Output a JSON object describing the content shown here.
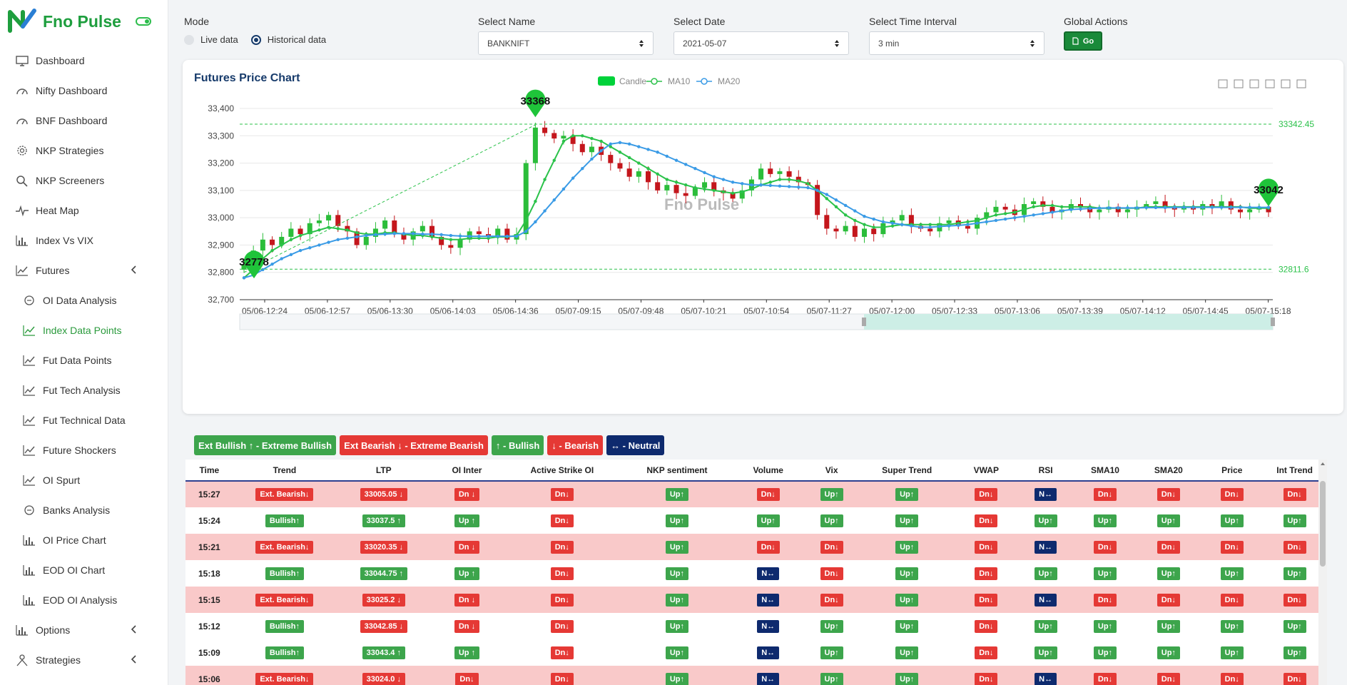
{
  "brand": {
    "name": "Fno Pulse"
  },
  "sidebar": {
    "items": [
      {
        "label": "Dashboard",
        "icon": "monitor-icon"
      },
      {
        "label": "Nifty Dashboard",
        "icon": "speedometer-icon"
      },
      {
        "label": "BNF Dashboard",
        "icon": "speedometer-icon"
      },
      {
        "label": "NKP Strategies",
        "icon": "gear-icon"
      },
      {
        "label": "NKP Screeners",
        "icon": "search-icon"
      },
      {
        "label": "Heat Map",
        "icon": "pulse-icon"
      },
      {
        "label": "Index Vs VIX",
        "icon": "bar-chart-icon"
      },
      {
        "label": "Futures",
        "icon": "line-chart-icon"
      },
      {
        "label": "OI Data Analysis",
        "icon": "circle-icon"
      },
      {
        "label": "Index Data Points",
        "icon": "line-chart-icon"
      },
      {
        "label": "Fut Data Points",
        "icon": "line-chart-icon"
      },
      {
        "label": "Fut Tech Analysis",
        "icon": "line-chart-icon"
      },
      {
        "label": "Fut Technical Data",
        "icon": "line-chart-icon"
      },
      {
        "label": "Future Shockers",
        "icon": "line-chart-icon"
      },
      {
        "label": "OI Spurt",
        "icon": "line-chart-icon"
      },
      {
        "label": "Banks Analysis",
        "icon": "circle-icon"
      },
      {
        "label": "OI Price Chart",
        "icon": "bar-chart-icon"
      },
      {
        "label": "EOD OI Chart",
        "icon": "bar-chart-icon"
      },
      {
        "label": "EOD OI Analysis",
        "icon": "bar-chart-icon"
      },
      {
        "label": "Options",
        "icon": "bar-chart-icon"
      },
      {
        "label": "Strategies",
        "icon": "person-icon"
      }
    ]
  },
  "controls": {
    "mode_label": "Mode",
    "mode_live": "Live data",
    "mode_hist": "Historical data",
    "name_label": "Select Name",
    "name_value": "BANKNIFT",
    "date_label": "Select Date",
    "date_value": "2021-05-07",
    "interval_label": "Select Time Interval",
    "interval_value": "3 min",
    "actions_label": "Global Actions",
    "go_label": "Go"
  },
  "chart_data": {
    "type": "candlestick",
    "title": "Futures Price Chart",
    "watermark": "Fno Pulse",
    "legend": [
      "Candle",
      "MA10",
      "MA20"
    ],
    "ylim": [
      32700,
      33400
    ],
    "yticks": [
      32700,
      32800,
      32900,
      33000,
      33100,
      33200,
      33300,
      33400
    ],
    "ytick_labels": [
      "32,700",
      "32,800",
      "32,900",
      "33,000",
      "33,100",
      "33,200",
      "33,300",
      "33,400"
    ],
    "xtick_labels": [
      "05/06-12:24",
      "05/06-12:57",
      "05/06-13:30",
      "05/06-14:03",
      "05/06-14:36",
      "05/07-09:15",
      "05/07-09:48",
      "05/07-10:21",
      "05/07-10:54",
      "05/07-11:27",
      "05/07-12:00",
      "05/07-12:33",
      "05/07-13:06",
      "05/07-13:39",
      "05/07-14:12",
      "05/07-14:45",
      "05/07-15:18"
    ],
    "markLines": [
      {
        "value": 33342.45,
        "label": "33342.45"
      },
      {
        "value": 32811.6,
        "label": "32811.6"
      }
    ],
    "markPoints": [
      {
        "label": "33368",
        "value": 33368,
        "at": "05/07-09:30"
      },
      {
        "label": "32778",
        "value": 32778,
        "at": "05/06-12:00"
      },
      {
        "label": "33042",
        "value": 33042,
        "at": "05/07-14:50"
      }
    ],
    "close": [
      32830,
      32880,
      32920,
      32900,
      32930,
      32960,
      32940,
      32980,
      32990,
      33010,
      32970,
      32950,
      32900,
      32930,
      32960,
      32990,
      32940,
      32920,
      32950,
      32970,
      32930,
      32900,
      32890,
      32920,
      32950,
      32940,
      32930,
      32960,
      32920,
      32940,
      33200,
      33330,
      33310,
      33290,
      33300,
      33270,
      33240,
      33260,
      33230,
      33200,
      33180,
      33150,
      33170,
      33130,
      33100,
      33120,
      33090,
      33080,
      33110,
      33130,
      33100,
      33090,
      33070,
      33100,
      33140,
      33180,
      33160,
      33170,
      33150,
      33130,
      33120,
      33010,
      32960,
      32950,
      32970,
      32930,
      32960,
      32940,
      32980,
      32990,
      33010,
      32970,
      32960,
      32950,
      32980,
      32990,
      32970,
      32960,
      33000,
      33020,
      33040,
      33030,
      33010,
      33050,
      33060,
      33040,
      33020,
      33030,
      33050,
      33040,
      33020,
      33030,
      33040,
      33020,
      33030,
      33040,
      33050,
      33060,
      33040,
      33030,
      33040,
      33030,
      33050,
      33040,
      33060,
      33030,
      33020,
      33030,
      33040,
      33020
    ],
    "ma10": [
      32780,
      32810,
      32850,
      32880,
      32900,
      32920,
      32935,
      32945,
      32955,
      32965,
      32960,
      32955,
      32945,
      32940,
      32940,
      32945,
      32945,
      32940,
      32935,
      32935,
      32930,
      32925,
      32920,
      32920,
      32925,
      32925,
      32925,
      32930,
      32930,
      32935,
      32990,
      33060,
      33140,
      33210,
      33280,
      33300,
      33300,
      33290,
      33280,
      33260,
      33240,
      33220,
      33200,
      33180,
      33160,
      33140,
      33130,
      33120,
      33110,
      33105,
      33100,
      33095,
      33090,
      33095,
      33105,
      33120,
      33130,
      33140,
      33140,
      33135,
      33125,
      33100,
      33070,
      33040,
      33010,
      32990,
      32975,
      32965,
      32965,
      32970,
      32975,
      32975,
      32975,
      32975,
      32975,
      32975,
      32980,
      32985,
      32990,
      33000,
      33010,
      33015,
      33020,
      33030,
      33040,
      33045,
      33045,
      33040,
      33040,
      33040,
      33040,
      33035,
      33035,
      33035,
      33035,
      33035,
      33040,
      33040,
      33040,
      33040,
      33040,
      33040,
      33040,
      33040,
      33040,
      33040,
      33040,
      33035,
      33035,
      33035
    ],
    "ma20": [
      32780,
      32790,
      32810,
      32830,
      32850,
      32865,
      32880,
      32890,
      32900,
      32910,
      32920,
      32925,
      32930,
      32935,
      32938,
      32940,
      32942,
      32942,
      32942,
      32940,
      32940,
      32938,
      32935,
      32933,
      32932,
      32932,
      32932,
      32932,
      32932,
      32932,
      32950,
      32985,
      33025,
      33065,
      33105,
      33145,
      33180,
      33215,
      33245,
      33270,
      33275,
      33270,
      33260,
      33250,
      33240,
      33225,
      33210,
      33195,
      33180,
      33165,
      33150,
      33140,
      33130,
      33125,
      33120,
      33120,
      33118,
      33116,
      33114,
      33112,
      33110,
      33100,
      33085,
      33065,
      33045,
      33025,
      33005,
      32995,
      32985,
      32980,
      32975,
      32970,
      32965,
      32965,
      32968,
      32970,
      32972,
      32975,
      32980,
      32985,
      32990,
      32995,
      33000,
      33005,
      33010,
      33015,
      33020,
      33025,
      33030,
      33032,
      33034,
      33035,
      33036,
      33036,
      33036,
      33036,
      33037,
      33037,
      33037,
      33038,
      33038,
      33038,
      33038,
      33038,
      33038,
      33038,
      33038,
      33038,
      33038,
      33038
    ]
  },
  "chips": [
    {
      "label": "Ext Bullish ↑ - Extreme Bullish",
      "kind": "g"
    },
    {
      "label": "Ext Bearish ↓ - Extreme Bearish",
      "kind": "r"
    },
    {
      "label": "↑ - Bullish",
      "kind": "g"
    },
    {
      "label": "↓ - Bearish",
      "kind": "r"
    },
    {
      "label": "↔ - Neutral",
      "kind": "n"
    }
  ],
  "table": {
    "headers": [
      "Time",
      "Trend",
      "LTP",
      "OI Inter",
      "Active Strike OI",
      "NKP sentiment",
      "Volume",
      "Vix",
      "Super Trend",
      "VWAP",
      "RSI",
      "SMA10",
      "SMA20",
      "Price",
      "Int Trend"
    ],
    "rows": [
      {
        "style": "bear",
        "cells": [
          [
            "15:27",
            "t"
          ],
          [
            "Ext. Bearish↓",
            "r"
          ],
          [
            "33005.05 ↓",
            "r"
          ],
          [
            "Dn ↓",
            "r"
          ],
          [
            "Dn↓",
            "r"
          ],
          [
            "Up↑",
            "g"
          ],
          [
            "Dn↓",
            "r"
          ],
          [
            "Up↑",
            "g"
          ],
          [
            "Up↑",
            "g"
          ],
          [
            "Dn↓",
            "r"
          ],
          [
            "N↔",
            "n"
          ],
          [
            "Dn↓",
            "r"
          ],
          [
            "Dn↓",
            "r"
          ],
          [
            "Dn↓",
            "r"
          ],
          [
            "Dn↓",
            "r"
          ]
        ]
      },
      {
        "style": "bull",
        "cells": [
          [
            "15:24",
            "t"
          ],
          [
            "Bullish↑",
            "g"
          ],
          [
            "33037.5 ↑",
            "g"
          ],
          [
            "Up ↑",
            "g"
          ],
          [
            "Dn↓",
            "r"
          ],
          [
            "Up↑",
            "g"
          ],
          [
            "Up↑",
            "g"
          ],
          [
            "Up↑",
            "g"
          ],
          [
            "Up↑",
            "g"
          ],
          [
            "Dn↓",
            "r"
          ],
          [
            "Up↑",
            "g"
          ],
          [
            "Up↑",
            "g"
          ],
          [
            "Up↑",
            "g"
          ],
          [
            "Up↑",
            "g"
          ],
          [
            "Up↑",
            "g"
          ]
        ]
      },
      {
        "style": "bear",
        "cells": [
          [
            "15:21",
            "t"
          ],
          [
            "Ext. Bearish↓",
            "r"
          ],
          [
            "33020.35 ↓",
            "r"
          ],
          [
            "Dn ↓",
            "r"
          ],
          [
            "Dn↓",
            "r"
          ],
          [
            "Up↑",
            "g"
          ],
          [
            "Dn↓",
            "r"
          ],
          [
            "Dn↓",
            "r"
          ],
          [
            "Up↑",
            "g"
          ],
          [
            "Dn↓",
            "r"
          ],
          [
            "N↔",
            "n"
          ],
          [
            "Dn↓",
            "r"
          ],
          [
            "Dn↓",
            "r"
          ],
          [
            "Dn↓",
            "r"
          ],
          [
            "Dn↓",
            "r"
          ]
        ]
      },
      {
        "style": "bull",
        "cells": [
          [
            "15:18",
            "t"
          ],
          [
            "Bullish↑",
            "g"
          ],
          [
            "33044.75 ↑",
            "g"
          ],
          [
            "Up ↑",
            "g"
          ],
          [
            "Dn↓",
            "r"
          ],
          [
            "Up↑",
            "g"
          ],
          [
            "N↔",
            "n"
          ],
          [
            "Dn↓",
            "r"
          ],
          [
            "Up↑",
            "g"
          ],
          [
            "Dn↓",
            "r"
          ],
          [
            "Up↑",
            "g"
          ],
          [
            "Up↑",
            "g"
          ],
          [
            "Up↑",
            "g"
          ],
          [
            "Up↑",
            "g"
          ],
          [
            "Up↑",
            "g"
          ]
        ]
      },
      {
        "style": "bear",
        "cells": [
          [
            "15:15",
            "t"
          ],
          [
            "Ext. Bearish↓",
            "r"
          ],
          [
            "33025.2 ↓",
            "r"
          ],
          [
            "Dn ↓",
            "r"
          ],
          [
            "Dn↓",
            "r"
          ],
          [
            "Up↑",
            "g"
          ],
          [
            "N↔",
            "n"
          ],
          [
            "Dn↓",
            "r"
          ],
          [
            "Up↑",
            "g"
          ],
          [
            "Dn↓",
            "r"
          ],
          [
            "N↔",
            "n"
          ],
          [
            "Dn↓",
            "r"
          ],
          [
            "Dn↓",
            "r"
          ],
          [
            "Dn↓",
            "r"
          ],
          [
            "Dn↓",
            "r"
          ]
        ]
      },
      {
        "style": "bull",
        "cells": [
          [
            "15:12",
            "t"
          ],
          [
            "Bullish↑",
            "g"
          ],
          [
            "33042.85 ↓",
            "r"
          ],
          [
            "Dn ↓",
            "r"
          ],
          [
            "Dn↓",
            "r"
          ],
          [
            "Up↑",
            "g"
          ],
          [
            "N↔",
            "n"
          ],
          [
            "Up↑",
            "g"
          ],
          [
            "Up↑",
            "g"
          ],
          [
            "Dn↓",
            "r"
          ],
          [
            "Up↑",
            "g"
          ],
          [
            "Up↑",
            "g"
          ],
          [
            "Up↑",
            "g"
          ],
          [
            "Up↑",
            "g"
          ],
          [
            "Up↑",
            "g"
          ]
        ]
      },
      {
        "style": "bull",
        "cells": [
          [
            "15:09",
            "t"
          ],
          [
            "Bullish↑",
            "g"
          ],
          [
            "33043.4 ↑",
            "g"
          ],
          [
            "Up ↑",
            "g"
          ],
          [
            "Dn↓",
            "r"
          ],
          [
            "Up↑",
            "g"
          ],
          [
            "N↔",
            "n"
          ],
          [
            "Up↑",
            "g"
          ],
          [
            "Up↑",
            "g"
          ],
          [
            "Dn↓",
            "r"
          ],
          [
            "Up↑",
            "g"
          ],
          [
            "Up↑",
            "g"
          ],
          [
            "Up↑",
            "g"
          ],
          [
            "Up↑",
            "g"
          ],
          [
            "Up↑",
            "g"
          ]
        ]
      },
      {
        "style": "bear",
        "cells": [
          [
            "15:06",
            "t"
          ],
          [
            "Ext. Bearish↓",
            "r"
          ],
          [
            "33024.0 ↓",
            "r"
          ],
          [
            "Dn↓",
            "r"
          ],
          [
            "Dn↓",
            "r"
          ],
          [
            "Up↑",
            "g"
          ],
          [
            "N↔",
            "n"
          ],
          [
            "Up↑",
            "g"
          ],
          [
            "Up↑",
            "g"
          ],
          [
            "Dn↓",
            "r"
          ],
          [
            "N↔",
            "n"
          ],
          [
            "Dn↓",
            "r"
          ],
          [
            "Dn↓",
            "r"
          ],
          [
            "Dn↓",
            "r"
          ],
          [
            "Dn↓",
            "r"
          ]
        ]
      }
    ]
  },
  "colors": {
    "bull": "#3da54c",
    "bear": "#e53935",
    "neutral": "#0e2a6e",
    "ma10": "#2bc24a",
    "ma20": "#3a9be6",
    "brand": "#1e9e3e"
  }
}
